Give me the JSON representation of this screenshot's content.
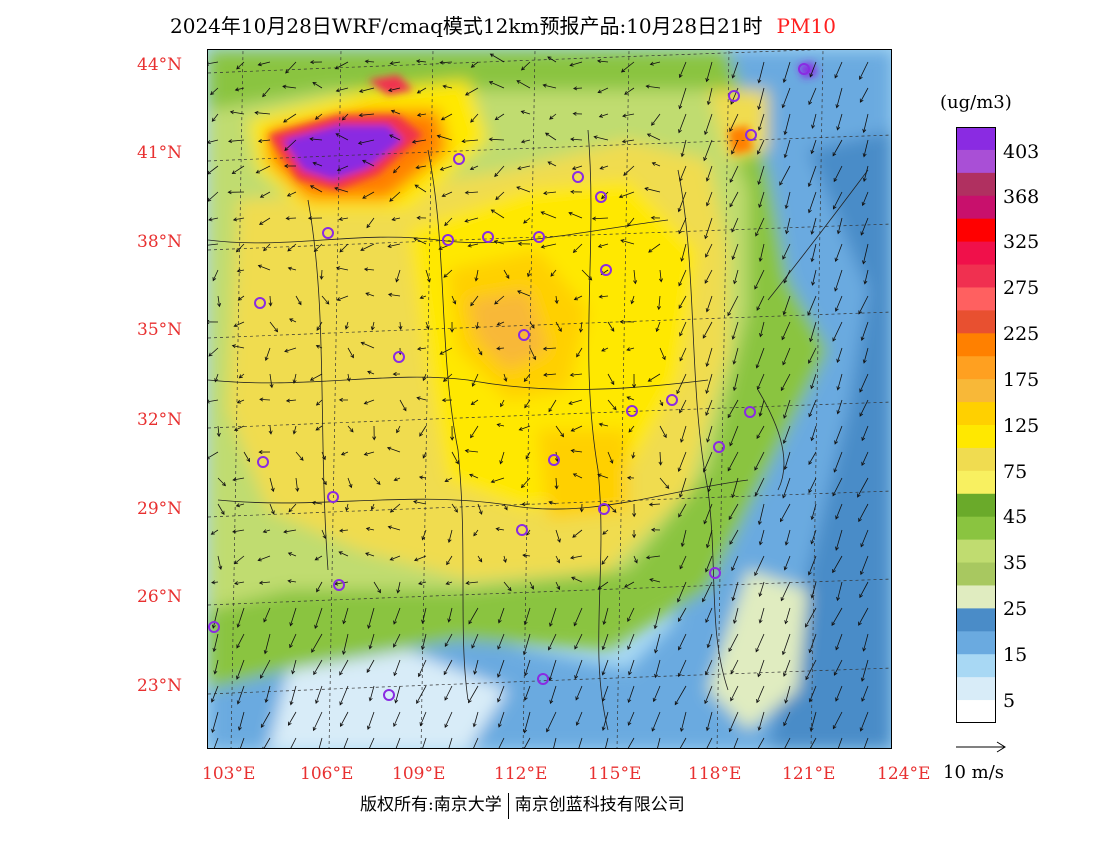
{
  "title": {
    "main": "2024年10月28日WRF/cmaq模式12km预报产品:10月28日21时",
    "variable": "PM10"
  },
  "map": {
    "lat_labels": [
      "44°N",
      "41°N",
      "38°N",
      "35°N",
      "32°N",
      "29°N",
      "26°N",
      "23°N"
    ],
    "lon_labels": [
      "103°E",
      "106°E",
      "109°E",
      "112°E",
      "115°E",
      "118°E",
      "121°E",
      "124°E"
    ],
    "label_color": "#e83030",
    "field": "PM10 concentration with wind vectors"
  },
  "colorbar": {
    "unit": "(ug/m3)",
    "labels": [
      "403",
      "368",
      "325",
      "275",
      "225",
      "175",
      "125",
      "75",
      "45",
      "35",
      "25",
      "15",
      "5"
    ],
    "colors": [
      "#8a2be2",
      "#a94fd6",
      "#b03060",
      "#c8106c",
      "#ff0000",
      "#f0104a",
      "#f03050",
      "#ff6060",
      "#e85030",
      "#ff8000",
      "#ffa020",
      "#f8b838",
      "#ffd000",
      "#ffe800",
      "#f0dc50",
      "#f8f060",
      "#6aaa2a",
      "#8ac440",
      "#c0dc70",
      "#a8c860",
      "#e0ecc0",
      "#4a8cc8",
      "#6aaae0",
      "#a8d8f4",
      "#d8ecf8",
      "#ffffff"
    ]
  },
  "wind_reference": {
    "label": "10 m/s"
  },
  "footer": {
    "left": "版权所有:南京大学",
    "right": "南京创蓝科技有限公司"
  }
}
